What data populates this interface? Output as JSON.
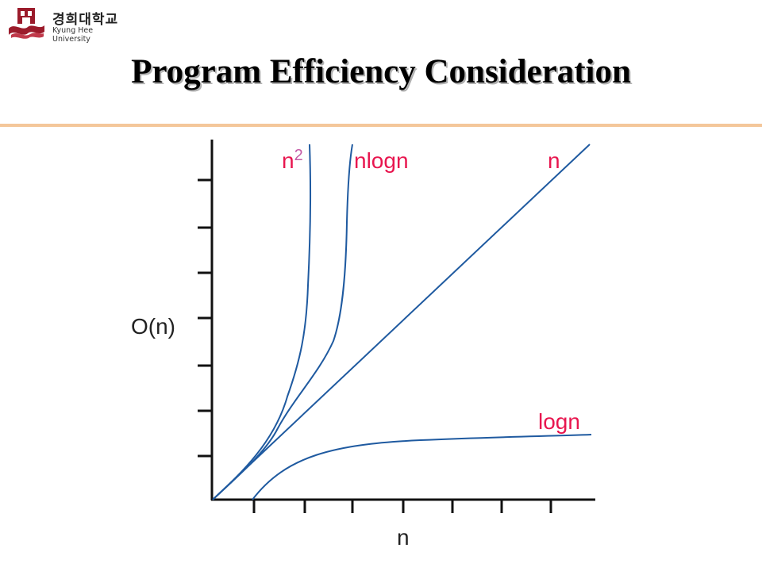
{
  "header": {
    "logo_korean": "경희대학교",
    "logo_english": "Kyung Hee University",
    "title": "Program Efficiency Consideration"
  },
  "diagram": {
    "y_axis_label": "O(n)",
    "x_axis_label": "n",
    "curves": [
      {
        "base": "n",
        "superscript": "2"
      },
      {
        "base": "nlogn"
      },
      {
        "base": "n"
      },
      {
        "base": "logn"
      }
    ],
    "colors": {
      "curve": "#1f5aa0",
      "curve_label": "#e8164f",
      "superscript": "#c45aa6",
      "axis": "#111111"
    }
  }
}
